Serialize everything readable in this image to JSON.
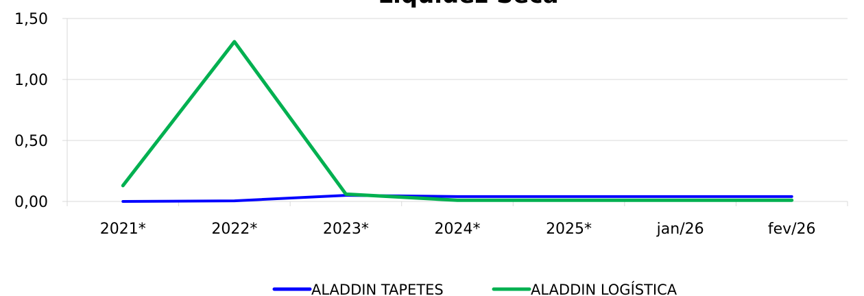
{
  "chart_data": {
    "type": "line",
    "title": "Liquidez Seca",
    "categories": [
      "2021*",
      "2022*",
      "2023*",
      "2024*",
      "2025*",
      "jan/26",
      "fev/26"
    ],
    "y_tick_labels": [
      "0,00",
      "0,50",
      "1,00",
      "1,50"
    ],
    "ylim": [
      0,
      1.5
    ],
    "grid": true,
    "legend_position": "bottom",
    "series": [
      {
        "name": "ALADDIN TAPETES",
        "color": "#0000ff",
        "values": [
          0.0,
          0.005,
          0.05,
          0.04,
          0.04,
          0.04,
          0.04
        ]
      },
      {
        "name": "ALADDIN LOGÍSTICA",
        "color": "#00b050",
        "values": [
          0.13,
          1.31,
          0.06,
          0.01,
          0.01,
          0.01,
          0.01
        ]
      }
    ]
  }
}
